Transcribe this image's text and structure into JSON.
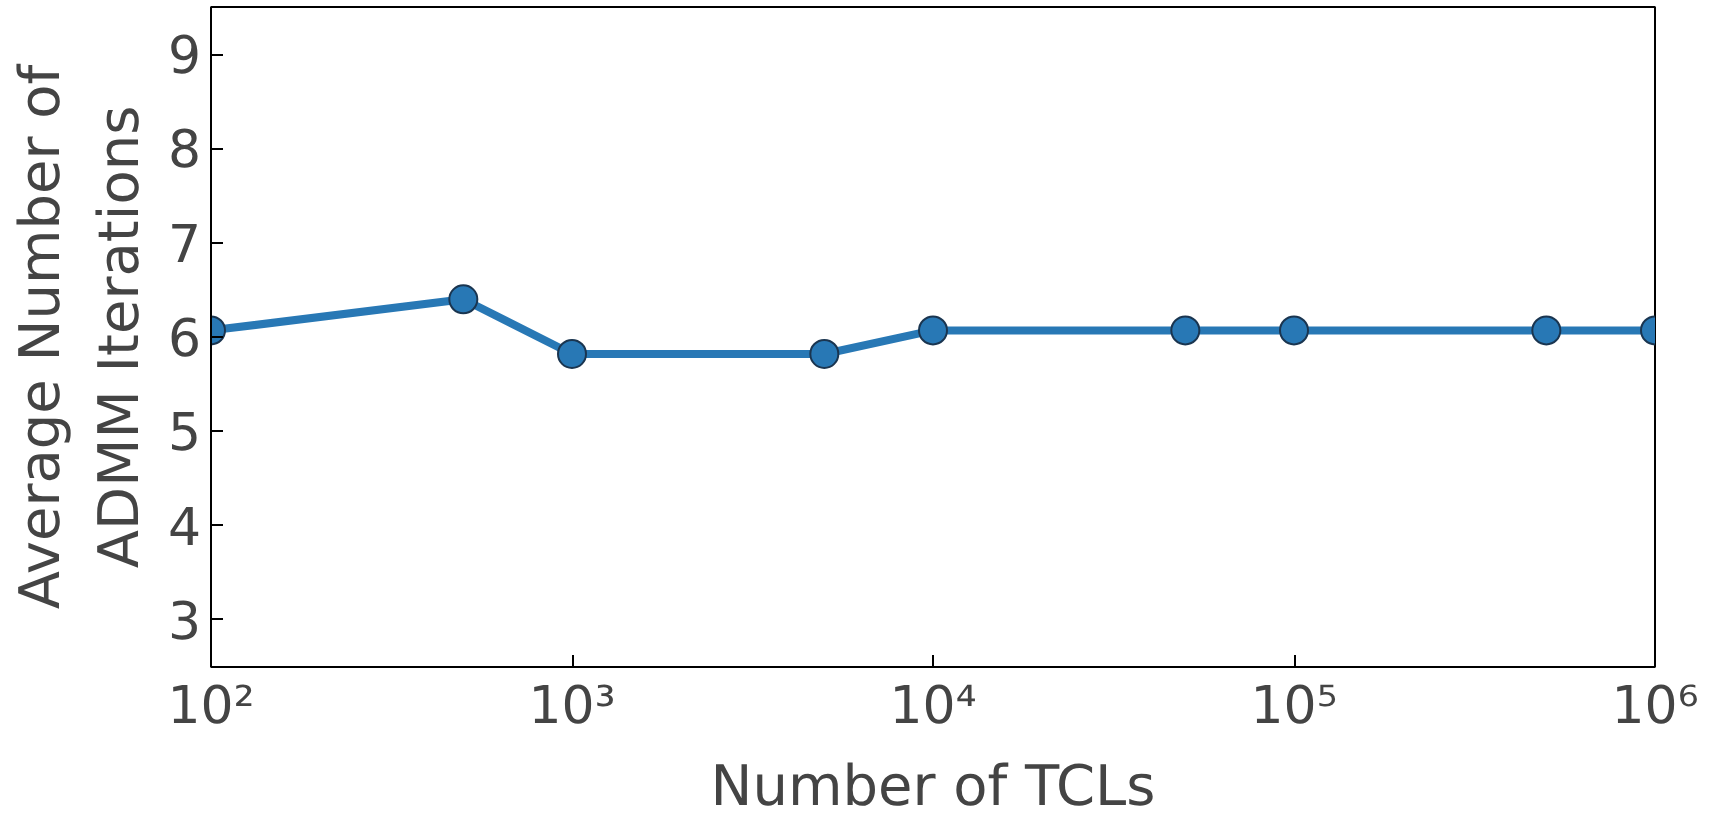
{
  "chart_data": {
    "type": "line",
    "xlabel": "Number of TCLs",
    "ylabel": "Average Number of\nADMM Iterations",
    "x": [
      100,
      500,
      1000,
      5000,
      10000,
      50000,
      100000,
      500000,
      1000000
    ],
    "series": [
      {
        "color": "#2878b5",
        "values": [
          6.07,
          6.4,
          5.82,
          5.82,
          6.07,
          6.07,
          6.07,
          6.07,
          6.07
        ]
      }
    ],
    "log": "x",
    "xlim": [
      100,
      1000000
    ],
    "ylim": [
      2.5,
      9.5
    ],
    "xticks": [
      {
        "value": 100,
        "label": "10²"
      },
      {
        "value": 1000,
        "label": "10³"
      },
      {
        "value": 10000,
        "label": "10⁴"
      },
      {
        "value": 100000,
        "label": "10⁵"
      },
      {
        "value": 1000000,
        "label": "10⁶"
      }
    ],
    "yticks": [
      3,
      4,
      5,
      6,
      7,
      8,
      9
    ],
    "grid": false,
    "marker": "circle",
    "line_style": "solid"
  }
}
